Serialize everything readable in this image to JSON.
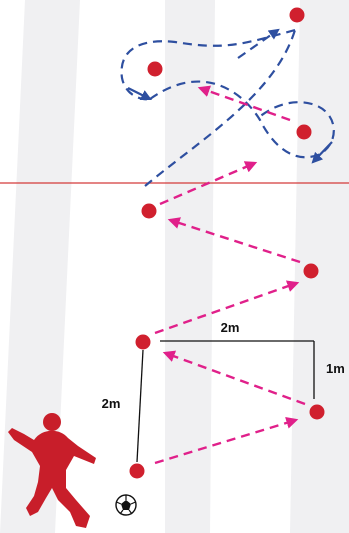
{
  "diagram": {
    "colors": {
      "background": "#ffffff",
      "stripe": "#f0f0f2",
      "cone": "#d0202e",
      "pass_arrow": "#e0208a",
      "run_arrow": "#2e4fa0",
      "halfway_line": "#d43a3a",
      "dimension_line": "#111111",
      "player": "#c81e2a"
    },
    "dimensions": {
      "width_label": "2m",
      "depth_label": "2m",
      "lateral_label": "1m"
    },
    "icons": {
      "player": "player-shooting-icon",
      "ball": "soccer-ball-icon"
    }
  }
}
